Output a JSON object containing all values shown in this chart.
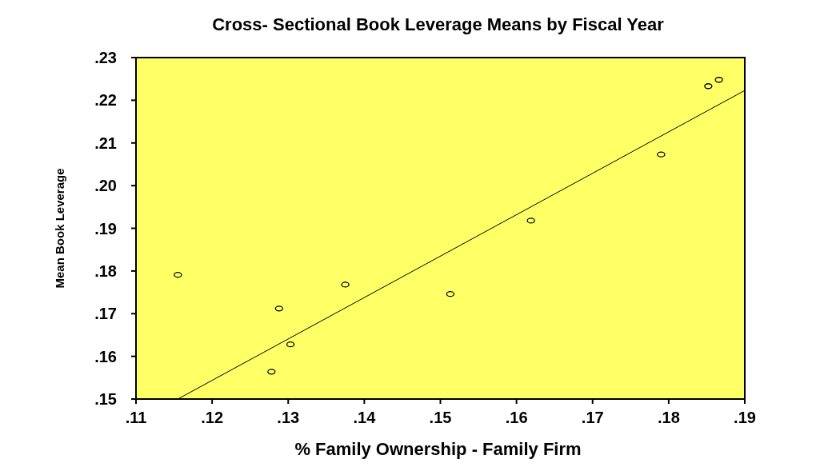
{
  "chart_data": {
    "type": "scatter",
    "title": "Cross- Sectional Book Leverage Means by Fiscal Year",
    "xlabel": "% Family Ownership - Family Firm",
    "ylabel": "Mean Book Leverage",
    "xlim": [
      0.11,
      0.19
    ],
    "ylim": [
      0.15,
      0.23
    ],
    "xticks": [
      {
        "value": 0.11,
        "label": ".11"
      },
      {
        "value": 0.12,
        "label": ".12"
      },
      {
        "value": 0.13,
        "label": ".13"
      },
      {
        "value": 0.14,
        "label": ".14"
      },
      {
        "value": 0.15,
        "label": ".15"
      },
      {
        "value": 0.16,
        "label": ".16"
      },
      {
        "value": 0.17,
        "label": ".17"
      },
      {
        "value": 0.18,
        "label": ".18"
      },
      {
        "value": 0.19,
        "label": ".19"
      }
    ],
    "yticks": [
      {
        "value": 0.15,
        "label": ".15"
      },
      {
        "value": 0.16,
        "label": ".16"
      },
      {
        "value": 0.17,
        "label": ".17"
      },
      {
        "value": 0.18,
        "label": ".18"
      },
      {
        "value": 0.19,
        "label": ".19"
      },
      {
        "value": 0.2,
        "label": ".20"
      },
      {
        "value": 0.21,
        "label": ".21"
      },
      {
        "value": 0.22,
        "label": ".22"
      },
      {
        "value": 0.23,
        "label": ".23"
      }
    ],
    "grid": false,
    "series": [
      {
        "type": "scatter",
        "marker": "circle",
        "color": "#000000",
        "x": [
          0.1155,
          0.1288,
          0.1303,
          0.1278,
          0.1375,
          0.1513,
          0.1619,
          0.179,
          0.1852,
          0.1866
        ],
        "values": [
          0.1791,
          0.1712,
          0.1628,
          0.1564,
          0.1768,
          0.1746,
          0.1918,
          0.2073,
          0.2233,
          0.2248
        ]
      },
      {
        "type": "line",
        "color": "#000000",
        "x": [
          0.1155,
          0.19
        ],
        "values": [
          0.15,
          0.2223
        ]
      }
    ]
  }
}
